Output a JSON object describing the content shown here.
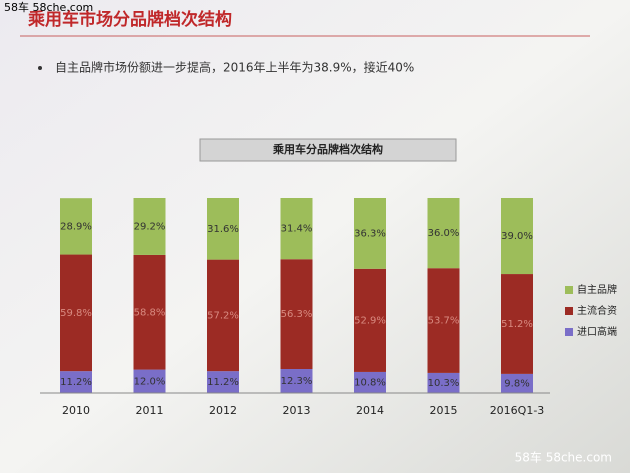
{
  "header": {
    "title": "乘用车市场分品牌档次结构",
    "bullet": "自主品牌市场份额进一步提高，2016年上半年为38.9%，接近40%",
    "watermark_top": "58车 58che.com",
    "watermark_bottom": "58车 58che.com"
  },
  "chart_data": {
    "type": "stacked-bar",
    "title": "乘用车分品牌档次结构",
    "categories": [
      "2010",
      "2011",
      "2012",
      "2013",
      "2014",
      "2015",
      "2016Q1-3"
    ],
    "legend": "right",
    "series": [
      {
        "name": "进口高端",
        "color": "#7a6ec8",
        "values": [
          11.2,
          12.0,
          11.2,
          12.3,
          10.8,
          10.3,
          9.8
        ],
        "value_labels": [
          "11.2%",
          "12.0%",
          "11.2%",
          "12.3%",
          "10.8%",
          "10.3%",
          "9.8%"
        ]
      },
      {
        "name": "主流合资",
        "color": "#9c2b24",
        "values": [
          59.8,
          58.8,
          57.2,
          56.3,
          52.9,
          53.7,
          51.2
        ],
        "value_labels": [
          "59.8%",
          "58.8%",
          "57.2%",
          "56.3%",
          "52.9%",
          "53.7%",
          "51.2%"
        ]
      },
      {
        "name": "自主品牌",
        "color": "#9dbd5a",
        "values": [
          28.9,
          29.2,
          31.6,
          31.4,
          36.3,
          36.0,
          39.0
        ],
        "value_labels": [
          "28.9%",
          "29.2%",
          "31.6%",
          "31.4%",
          "36.3%",
          "36.0%",
          "39.0%"
        ]
      }
    ]
  }
}
